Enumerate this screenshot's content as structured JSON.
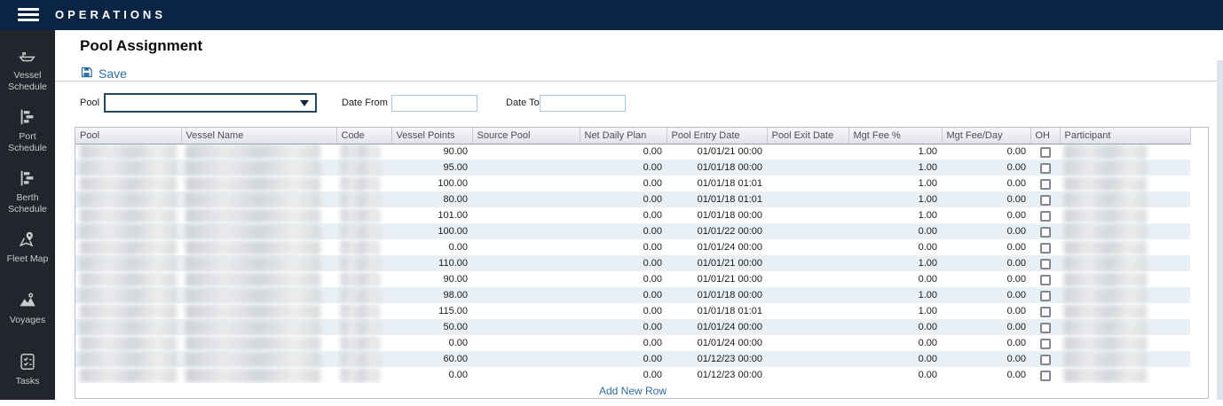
{
  "topbar": {
    "title": "OPERATIONS"
  },
  "sidebar": {
    "items": [
      {
        "label": "Vessel Schedule",
        "icon": "ship-icon"
      },
      {
        "label": "Port Schedule",
        "icon": "gantt-icon"
      },
      {
        "label": "Berth Schedule",
        "icon": "gantt-icon"
      },
      {
        "label": "Fleet Map",
        "icon": "map-pin-icon"
      },
      {
        "label": "Voyages",
        "icon": "route-pin-icon"
      },
      {
        "label": "Tasks",
        "icon": "checklist-icon"
      }
    ]
  },
  "page": {
    "title": "Pool Assignment"
  },
  "toolbar": {
    "save_label": "Save",
    "save_icon": "floppy-disk-icon"
  },
  "filters": {
    "pool_label": "Pool",
    "pool_value": "",
    "date_from_label": "Date From",
    "date_from_value": "",
    "date_to_label": "Date To",
    "date_to_value": ""
  },
  "table": {
    "columns": [
      "Pool",
      "Vessel Name",
      "Code",
      "Vessel Points",
      "Source Pool",
      "Net Daily Plan",
      "Pool Entry Date",
      "Pool Exit Date",
      "Mgt Fee %",
      "Mgt Fee/Day",
      "OH",
      "Participant"
    ],
    "redacted_columns": [
      "Pool",
      "Vessel Name",
      "Code",
      "Participant"
    ],
    "rows": [
      {
        "pool": "",
        "vessel_name": "",
        "code": "",
        "vessel_points": "90.00",
        "source_pool": "",
        "net_daily_plan": "0.00",
        "pool_entry_date": "01/01/21 00:00",
        "pool_exit_date": "",
        "mgt_fee_pct": "1.00",
        "mgt_fee_day": "0.00",
        "oh_checked": false,
        "participant": ""
      },
      {
        "pool": "",
        "vessel_name": "",
        "code": "",
        "vessel_points": "95.00",
        "source_pool": "",
        "net_daily_plan": "0.00",
        "pool_entry_date": "01/01/18 00:00",
        "pool_exit_date": "",
        "mgt_fee_pct": "1.00",
        "mgt_fee_day": "0.00",
        "oh_checked": false,
        "participant": ""
      },
      {
        "pool": "",
        "vessel_name": "",
        "code": "",
        "vessel_points": "100.00",
        "source_pool": "",
        "net_daily_plan": "0.00",
        "pool_entry_date": "01/01/18 01:01",
        "pool_exit_date": "",
        "mgt_fee_pct": "1.00",
        "mgt_fee_day": "0.00",
        "oh_checked": false,
        "participant": ""
      },
      {
        "pool": "",
        "vessel_name": "",
        "code": "",
        "vessel_points": "80.00",
        "source_pool": "",
        "net_daily_plan": "0.00",
        "pool_entry_date": "01/01/18 01:01",
        "pool_exit_date": "",
        "mgt_fee_pct": "1.00",
        "mgt_fee_day": "0.00",
        "oh_checked": false,
        "participant": ""
      },
      {
        "pool": "",
        "vessel_name": "",
        "code": "",
        "vessel_points": "101.00",
        "source_pool": "",
        "net_daily_plan": "0.00",
        "pool_entry_date": "01/01/18 00:00",
        "pool_exit_date": "",
        "mgt_fee_pct": "1.00",
        "mgt_fee_day": "0.00",
        "oh_checked": false,
        "participant": ""
      },
      {
        "pool": "",
        "vessel_name": "",
        "code": "",
        "vessel_points": "100.00",
        "source_pool": "",
        "net_daily_plan": "0.00",
        "pool_entry_date": "01/01/22 00:00",
        "pool_exit_date": "",
        "mgt_fee_pct": "0.00",
        "mgt_fee_day": "0.00",
        "oh_checked": false,
        "participant": ""
      },
      {
        "pool": "",
        "vessel_name": "",
        "code": "",
        "vessel_points": "0.00",
        "source_pool": "",
        "net_daily_plan": "0.00",
        "pool_entry_date": "01/01/24 00:00",
        "pool_exit_date": "",
        "mgt_fee_pct": "0.00",
        "mgt_fee_day": "0.00",
        "oh_checked": false,
        "participant": ""
      },
      {
        "pool": "",
        "vessel_name": "",
        "code": "",
        "vessel_points": "110.00",
        "source_pool": "",
        "net_daily_plan": "0.00",
        "pool_entry_date": "01/01/21 00:00",
        "pool_exit_date": "",
        "mgt_fee_pct": "1.00",
        "mgt_fee_day": "0.00",
        "oh_checked": false,
        "participant": ""
      },
      {
        "pool": "",
        "vessel_name": "",
        "code": "",
        "vessel_points": "90.00",
        "source_pool": "",
        "net_daily_plan": "0.00",
        "pool_entry_date": "01/01/21 00:00",
        "pool_exit_date": "",
        "mgt_fee_pct": "0.00",
        "mgt_fee_day": "0.00",
        "oh_checked": false,
        "participant": ""
      },
      {
        "pool": "",
        "vessel_name": "",
        "code": "",
        "vessel_points": "98.00",
        "source_pool": "",
        "net_daily_plan": "0.00",
        "pool_entry_date": "01/01/18 00:00",
        "pool_exit_date": "",
        "mgt_fee_pct": "1.00",
        "mgt_fee_day": "0.00",
        "oh_checked": false,
        "participant": ""
      },
      {
        "pool": "",
        "vessel_name": "",
        "code": "",
        "vessel_points": "115.00",
        "source_pool": "",
        "net_daily_plan": "0.00",
        "pool_entry_date": "01/01/18 01:01",
        "pool_exit_date": "",
        "mgt_fee_pct": "1.00",
        "mgt_fee_day": "0.00",
        "oh_checked": false,
        "participant": ""
      },
      {
        "pool": "",
        "vessel_name": "",
        "code": "",
        "vessel_points": "50.00",
        "source_pool": "",
        "net_daily_plan": "0.00",
        "pool_entry_date": "01/01/24 00:00",
        "pool_exit_date": "",
        "mgt_fee_pct": "0.00",
        "mgt_fee_day": "0.00",
        "oh_checked": false,
        "participant": ""
      },
      {
        "pool": "",
        "vessel_name": "",
        "code": "",
        "vessel_points": "0.00",
        "source_pool": "",
        "net_daily_plan": "0.00",
        "pool_entry_date": "01/01/24 00:00",
        "pool_exit_date": "",
        "mgt_fee_pct": "0.00",
        "mgt_fee_day": "0.00",
        "oh_checked": false,
        "participant": ""
      },
      {
        "pool": "",
        "vessel_name": "",
        "code": "",
        "vessel_points": "60.00",
        "source_pool": "",
        "net_daily_plan": "0.00",
        "pool_entry_date": "01/12/23 00:00",
        "pool_exit_date": "",
        "mgt_fee_pct": "0.00",
        "mgt_fee_day": "0.00",
        "oh_checked": false,
        "participant": ""
      },
      {
        "pool": "",
        "vessel_name": "",
        "code": "",
        "vessel_points": "0.00",
        "source_pool": "",
        "net_daily_plan": "0.00",
        "pool_entry_date": "01/12/23 00:00",
        "pool_exit_date": "",
        "mgt_fee_pct": "0.00",
        "mgt_fee_day": "0.00",
        "oh_checked": false,
        "participant": ""
      }
    ],
    "footer": {
      "add_row_label": "Add New Row"
    }
  },
  "colors": {
    "topbar_bg": "#0a2443",
    "sidebar_bg": "#21262c",
    "accent_blue": "#2d6da3",
    "row_alt_bg": "#e9f0f5",
    "dropdown_border": "#1d4b60"
  }
}
